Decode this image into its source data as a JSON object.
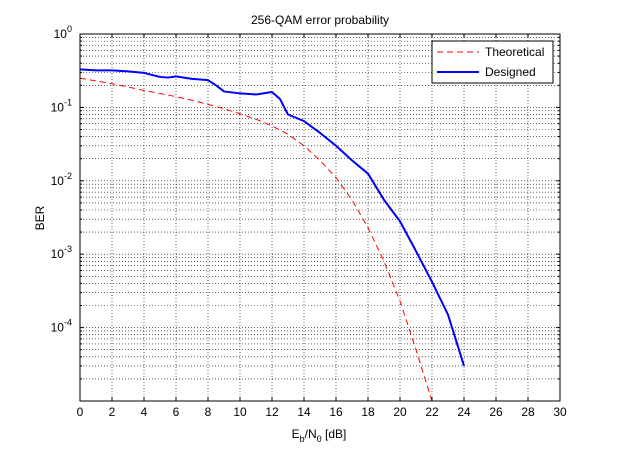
{
  "chart_data": {
    "type": "line",
    "title": "256-QAM error probability",
    "xlabel": {
      "main": "E",
      "sub1": "b",
      "mid": "/N",
      "sub2": "0",
      "unit": " [dB]"
    },
    "ylabel": "BER",
    "xlim": [
      0,
      30
    ],
    "ylim": [
      1e-05,
      1
    ],
    "yscale": "log",
    "grid": true,
    "legend_position": "top-right",
    "x_ticks": [
      "0",
      "2",
      "4",
      "6",
      "8",
      "10",
      "12",
      "14",
      "16",
      "18",
      "20",
      "22",
      "24",
      "26",
      "28",
      "30"
    ],
    "y_ticks": [
      {
        "base": "10",
        "exp": "0"
      },
      {
        "base": "10",
        "exp": "-1"
      },
      {
        "base": "10",
        "exp": "-2"
      },
      {
        "base": "10",
        "exp": "-3"
      },
      {
        "base": "10",
        "exp": "-4"
      }
    ],
    "series": [
      {
        "name": "Theoretical",
        "color": "#ff0000",
        "style": "dashed",
        "x": [
          0,
          1,
          2,
          3,
          4,
          5,
          6,
          7,
          8,
          9,
          10,
          11,
          12,
          13,
          14,
          15,
          16,
          17,
          18,
          19,
          20,
          21,
          22,
          22.5
        ],
        "y": [
          0.25,
          0.23,
          0.21,
          0.19,
          0.17,
          0.155,
          0.14,
          0.125,
          0.11,
          0.096,
          0.082,
          0.069,
          0.056,
          0.043,
          0.03,
          0.019,
          0.011,
          0.0055,
          0.0023,
          0.0008,
          0.00023,
          5e-05,
          1e-05,
          2.3e-06
        ]
      },
      {
        "name": "Designed",
        "color": "#0000ff",
        "style": "solid",
        "x": [
          0,
          1,
          2,
          3,
          4,
          5,
          5.5,
          6,
          7,
          8,
          8.5,
          9,
          10,
          11,
          12,
          12.5,
          13,
          14,
          15,
          16,
          17,
          18,
          19,
          20,
          21,
          22,
          23,
          24
        ],
        "y": [
          0.33,
          0.32,
          0.32,
          0.31,
          0.295,
          0.26,
          0.255,
          0.265,
          0.245,
          0.235,
          0.2,
          0.165,
          0.155,
          0.15,
          0.162,
          0.13,
          0.08,
          0.065,
          0.045,
          0.03,
          0.019,
          0.0125,
          0.0055,
          0.0028,
          0.0011,
          0.00042,
          0.00015,
          3e-05
        ]
      }
    ]
  }
}
